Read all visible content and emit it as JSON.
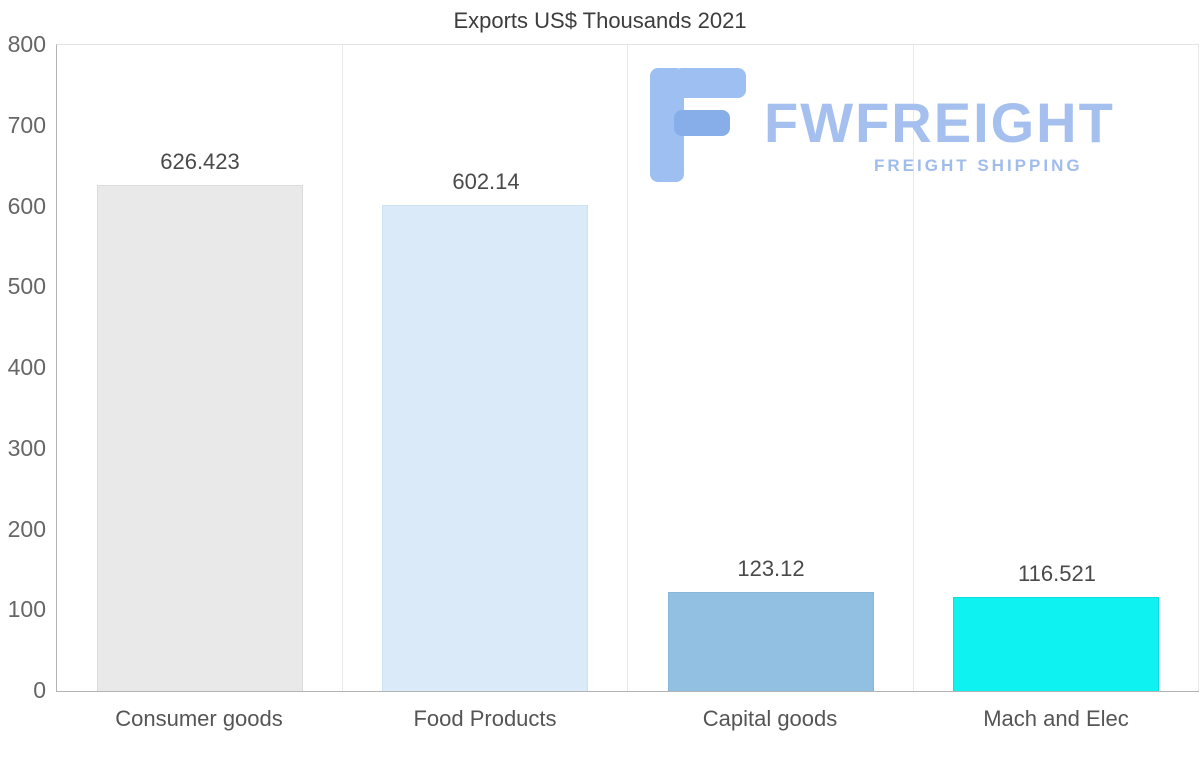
{
  "title": "Exports US$ Thousands 2021",
  "watermark": {
    "brand": "FWFREIGHT",
    "tagline": "FREIGHT SHIPPING",
    "color": "#a5c0ee"
  },
  "chart_data": {
    "type": "bar",
    "title": "Exports US$ Thousands 2021",
    "categories": [
      "Consumer goods",
      "Food Products",
      "Capital goods",
      "Mach and Elec"
    ],
    "values": [
      626.423,
      602.14,
      123.12,
      116.521
    ],
    "labels": [
      "626.423",
      "602.14",
      "123.12",
      "116.521"
    ],
    "bar_colors": [
      "#e9e9e9",
      "#dbeaf8",
      "#92c0e2",
      "#0ef2f2"
    ],
    "bar_borders": [
      "#dcdcdc",
      "#cde2f3",
      "#86b6da",
      "#0cdede"
    ],
    "xlabel": "",
    "ylabel": "",
    "ylim": [
      0,
      800
    ],
    "yticks": [
      0,
      100,
      200,
      300,
      400,
      500,
      600,
      700,
      800
    ],
    "grid": "vertical",
    "legend": "none"
  }
}
